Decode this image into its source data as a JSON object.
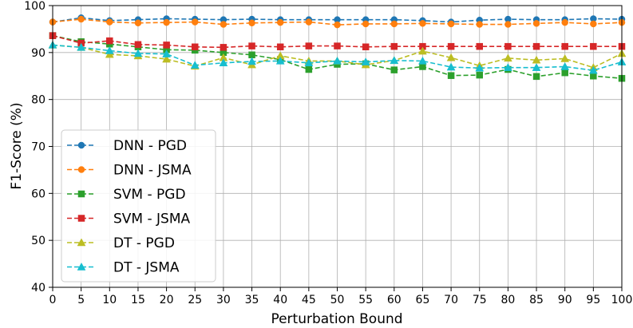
{
  "chart_data": {
    "type": "line",
    "title": "",
    "xlabel": "Perturbation Bound",
    "ylabel": "F1-Score (%)",
    "xlim": [
      0,
      100
    ],
    "ylim": [
      40,
      100
    ],
    "xticks": [
      0,
      5,
      10,
      15,
      20,
      25,
      30,
      35,
      40,
      45,
      50,
      55,
      60,
      65,
      70,
      75,
      80,
      85,
      90,
      95,
      100
    ],
    "yticks": [
      40,
      50,
      60,
      70,
      80,
      90,
      100
    ],
    "grid": true,
    "legend_position": "lower-left",
    "x": [
      0,
      5,
      10,
      15,
      20,
      25,
      30,
      35,
      40,
      45,
      50,
      55,
      60,
      65,
      70,
      75,
      80,
      85,
      90,
      95,
      100
    ],
    "series": [
      {
        "name": "DNN - PGD",
        "color": "#1f77b4",
        "marker": "circle",
        "values": [
          96.5,
          97.4,
          96.8,
          97.0,
          97.2,
          97.1,
          97.0,
          97.1,
          97.0,
          97.0,
          97.0,
          97.0,
          97.0,
          96.8,
          96.5,
          96.9,
          97.1,
          97.0,
          97.0,
          97.2,
          97.1
        ]
      },
      {
        "name": "DNN - JSMA",
        "color": "#ff7f0e",
        "marker": "circle",
        "values": [
          96.5,
          97.1,
          96.5,
          96.3,
          96.4,
          96.5,
          96.0,
          96.3,
          96.4,
          96.5,
          95.9,
          96.1,
          96.1,
          96.2,
          96.1,
          96.0,
          96.0,
          96.2,
          96.4,
          96.1,
          96.4
        ]
      },
      {
        "name": "SVM - PGD",
        "color": "#2ca02c",
        "marker": "square",
        "values": [
          93.6,
          92.3,
          91.8,
          91.2,
          90.6,
          90.5,
          90.0,
          89.5,
          88.5,
          86.4,
          87.5,
          87.6,
          86.3,
          87.0,
          85.1,
          85.2,
          86.4,
          84.9,
          85.7,
          85.0,
          84.5
        ]
      },
      {
        "name": "SVM - JSMA",
        "color": "#d62728",
        "marker": "square",
        "values": [
          93.6,
          92.0,
          92.5,
          91.7,
          91.6,
          91.2,
          91.1,
          91.4,
          91.2,
          91.4,
          91.4,
          91.2,
          91.3,
          91.3,
          91.3,
          91.3,
          91.3,
          91.3,
          91.3,
          91.3,
          91.3
        ]
      },
      {
        "name": "DT - PGD",
        "color": "#bcbd22",
        "marker": "triangle",
        "values": [
          91.6,
          91.1,
          89.6,
          89.3,
          88.6,
          87.1,
          88.9,
          87.4,
          89.3,
          88.2,
          88.2,
          87.4,
          88.3,
          90.3,
          88.9,
          87.2,
          88.8,
          88.4,
          88.7,
          86.8,
          89.8
        ]
      },
      {
        "name": "DT - JSMA",
        "color": "#17becf",
        "marker": "triangle",
        "values": [
          91.6,
          91.1,
          90.4,
          89.8,
          89.7,
          87.3,
          87.8,
          88.1,
          88.2,
          87.8,
          88.2,
          88.0,
          88.3,
          88.2,
          86.9,
          86.7,
          86.8,
          86.8,
          87.0,
          86.2,
          88.0
        ]
      }
    ]
  }
}
